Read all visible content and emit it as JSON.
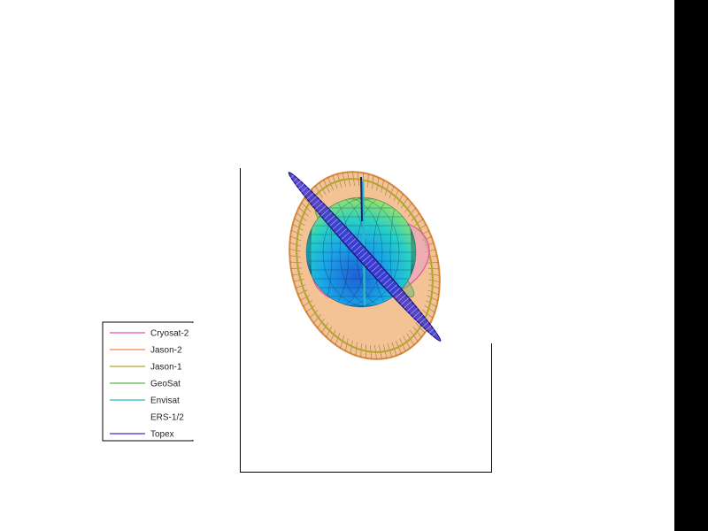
{
  "chart_data": {
    "type": "other",
    "title": "",
    "xlabel": "",
    "ylabel": "",
    "grid": false,
    "legend_placement": "left",
    "legend": [
      {
        "name": "Cryosat-2",
        "color": "#e0559d"
      },
      {
        "name": "Jason-2",
        "color": "#ee8640"
      },
      {
        "name": "Jason-1",
        "color": "#b3a42e"
      },
      {
        "name": "GeoSat",
        "color": "#58b04a"
      },
      {
        "name": "Envisat",
        "color": "#2bb7c8"
      },
      {
        "name": "ERS-1/2",
        "color": "#ffffff"
      },
      {
        "name": "Topex",
        "color": "#3d2ed0"
      }
    ],
    "globe_colormap": [
      "#1e5fd8",
      "#19a6e8",
      "#27d0c6",
      "#7ee07a",
      "#e6ef43"
    ]
  }
}
